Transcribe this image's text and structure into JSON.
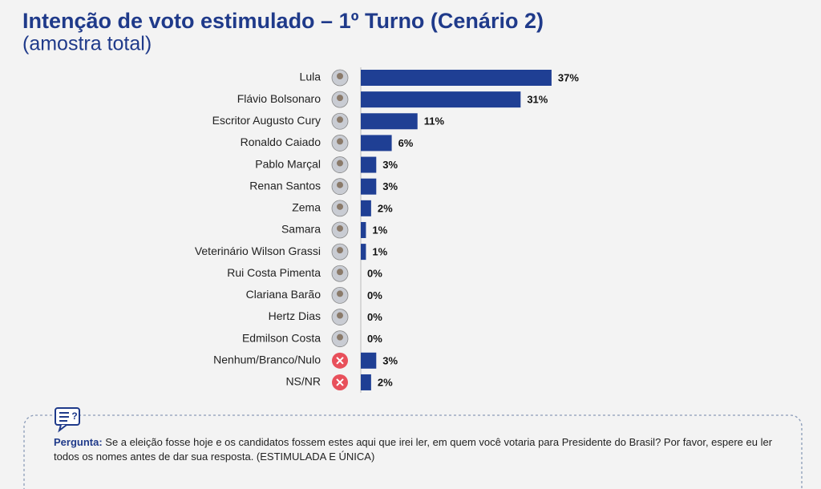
{
  "chart_data": {
    "type": "bar",
    "orientation": "horizontal",
    "title": "Intenção de voto estimulado – 1º Turno (Cenário 2)",
    "subtitle": "(amostra total)",
    "categories": [
      "Lula",
      "Flávio Bolsonaro",
      "Escritor Augusto Cury",
      "Ronaldo Caiado",
      "Pablo Marçal",
      "Renan Santos",
      "Zema",
      "Samara",
      "Veterinário Wilson Grassi",
      "Rui Costa Pimenta",
      "Clariana Barão",
      "Hertz Dias",
      "Edmilson Costa",
      "Nenhum/Branco/Nulo",
      "NS/NR"
    ],
    "values": [
      37,
      31,
      11,
      6,
      3,
      3,
      2,
      1,
      1,
      0,
      0,
      0,
      0,
      3,
      2
    ],
    "value_labels": [
      "37%",
      "31%",
      "11%",
      "6%",
      "3%",
      "3%",
      "2%",
      "1%",
      "1%",
      "0%",
      "0%",
      "0%",
      "0%",
      "3%",
      "2%"
    ],
    "color": "#1f3f94",
    "note_label": "Pergunta:",
    "note": "Se a eleição fosse hoje e os candidatos fossem estes aqui que irei ler, em quem você votaria para Presidente do Brasil? Por favor, espere eu ler todos os nomes antes de dar sua resposta. (ESTIMULADA E ÚNICA)"
  }
}
